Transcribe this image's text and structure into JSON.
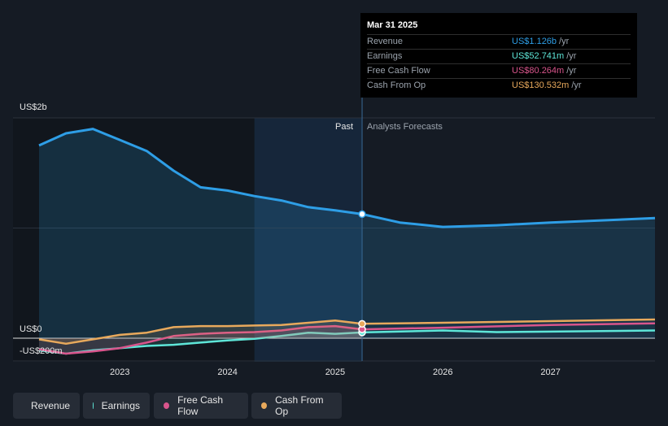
{
  "tooltip": {
    "date": "Mar 31 2025",
    "rows": [
      {
        "label": "Revenue",
        "value": "US$1.126b",
        "unit": "/yr",
        "color": "#2e9ee6"
      },
      {
        "label": "Earnings",
        "value": "US$52.741m",
        "unit": "/yr",
        "color": "#5ee6d8"
      },
      {
        "label": "Free Cash Flow",
        "value": "US$80.264m",
        "unit": "/yr",
        "color": "#d9558c"
      },
      {
        "label": "Cash From Op",
        "value": "US$130.532m",
        "unit": "/yr",
        "color": "#e8a95c"
      }
    ]
  },
  "past_label": "Past",
  "forecast_label": "Analysts Forecasts",
  "legend": [
    {
      "label": "Revenue",
      "color": "#2e9ee6"
    },
    {
      "label": "Earnings",
      "color": "#5ee6d8"
    },
    {
      "label": "Free Cash Flow",
      "color": "#d9558c"
    },
    {
      "label": "Cash From Op",
      "color": "#e8a95c"
    }
  ],
  "chart_data": {
    "type": "line",
    "y_tick_labels": [
      "US$2b",
      "US$0",
      "-US$200m"
    ],
    "x_tick_labels": [
      "2023",
      "2024",
      "2025",
      "2026",
      "2027"
    ],
    "ylim": [
      -200,
      2000
    ],
    "y_unit": "US$ m",
    "xlim": [
      2022.25,
      2027.97
    ],
    "divider_x": 2025.25,
    "past_shade_from": 2024.25,
    "grid": true,
    "series": [
      {
        "name": "Revenue",
        "color": "#2e9ee6",
        "area": true,
        "points": [
          [
            2022.25,
            1750
          ],
          [
            2022.5,
            1860
          ],
          [
            2022.75,
            1900
          ],
          [
            2023.0,
            1800
          ],
          [
            2023.25,
            1700
          ],
          [
            2023.5,
            1520
          ],
          [
            2023.75,
            1370
          ],
          [
            2024.0,
            1340
          ],
          [
            2024.25,
            1290
          ],
          [
            2024.5,
            1250
          ],
          [
            2024.75,
            1190
          ],
          [
            2025.0,
            1160
          ],
          [
            2025.25,
            1126
          ]
        ],
        "forecast": [
          [
            2025.25,
            1126
          ],
          [
            2025.6,
            1050
          ],
          [
            2026.0,
            1010
          ],
          [
            2026.5,
            1025
          ],
          [
            2027.0,
            1050
          ],
          [
            2027.97,
            1090
          ]
        ]
      },
      {
        "name": "Earnings",
        "color": "#5ee6d8",
        "points": [
          [
            2022.25,
            -110
          ],
          [
            2022.5,
            -140
          ],
          [
            2022.75,
            -110
          ],
          [
            2023.0,
            -90
          ],
          [
            2023.25,
            -70
          ],
          [
            2023.5,
            -60
          ],
          [
            2023.75,
            -40
          ],
          [
            2024.0,
            -20
          ],
          [
            2024.25,
            -5
          ],
          [
            2024.5,
            20
          ],
          [
            2024.75,
            50
          ],
          [
            2025.0,
            40
          ],
          [
            2025.25,
            52.741
          ]
        ],
        "forecast": [
          [
            2025.25,
            52.741
          ],
          [
            2026.0,
            70
          ],
          [
            2026.5,
            55
          ],
          [
            2027.0,
            60
          ],
          [
            2027.97,
            70
          ]
        ]
      },
      {
        "name": "Free Cash Flow",
        "color": "#d9558c",
        "points": [
          [
            2022.25,
            -100
          ],
          [
            2022.5,
            -140
          ],
          [
            2022.75,
            -120
          ],
          [
            2023.0,
            -90
          ],
          [
            2023.25,
            -40
          ],
          [
            2023.5,
            20
          ],
          [
            2023.75,
            40
          ],
          [
            2024.0,
            50
          ],
          [
            2024.25,
            55
          ],
          [
            2024.5,
            70
          ],
          [
            2024.75,
            100
          ],
          [
            2025.0,
            110
          ],
          [
            2025.25,
            80.264
          ]
        ],
        "forecast": [
          [
            2025.25,
            80.264
          ],
          [
            2026.0,
            95
          ],
          [
            2027.0,
            120
          ],
          [
            2027.97,
            135
          ]
        ]
      },
      {
        "name": "Cash From Op",
        "color": "#e8a95c",
        "points": [
          [
            2022.25,
            -10
          ],
          [
            2022.5,
            -50
          ],
          [
            2022.75,
            -10
          ],
          [
            2023.0,
            30
          ],
          [
            2023.25,
            50
          ],
          [
            2023.5,
            100
          ],
          [
            2023.75,
            110
          ],
          [
            2024.0,
            110
          ],
          [
            2024.25,
            115
          ],
          [
            2024.5,
            120
          ],
          [
            2024.75,
            140
          ],
          [
            2025.0,
            160
          ],
          [
            2025.25,
            130.532
          ]
        ],
        "forecast": [
          [
            2025.25,
            130.532
          ],
          [
            2026.0,
            140
          ],
          [
            2027.0,
            155
          ],
          [
            2027.97,
            170
          ]
        ]
      }
    ]
  }
}
